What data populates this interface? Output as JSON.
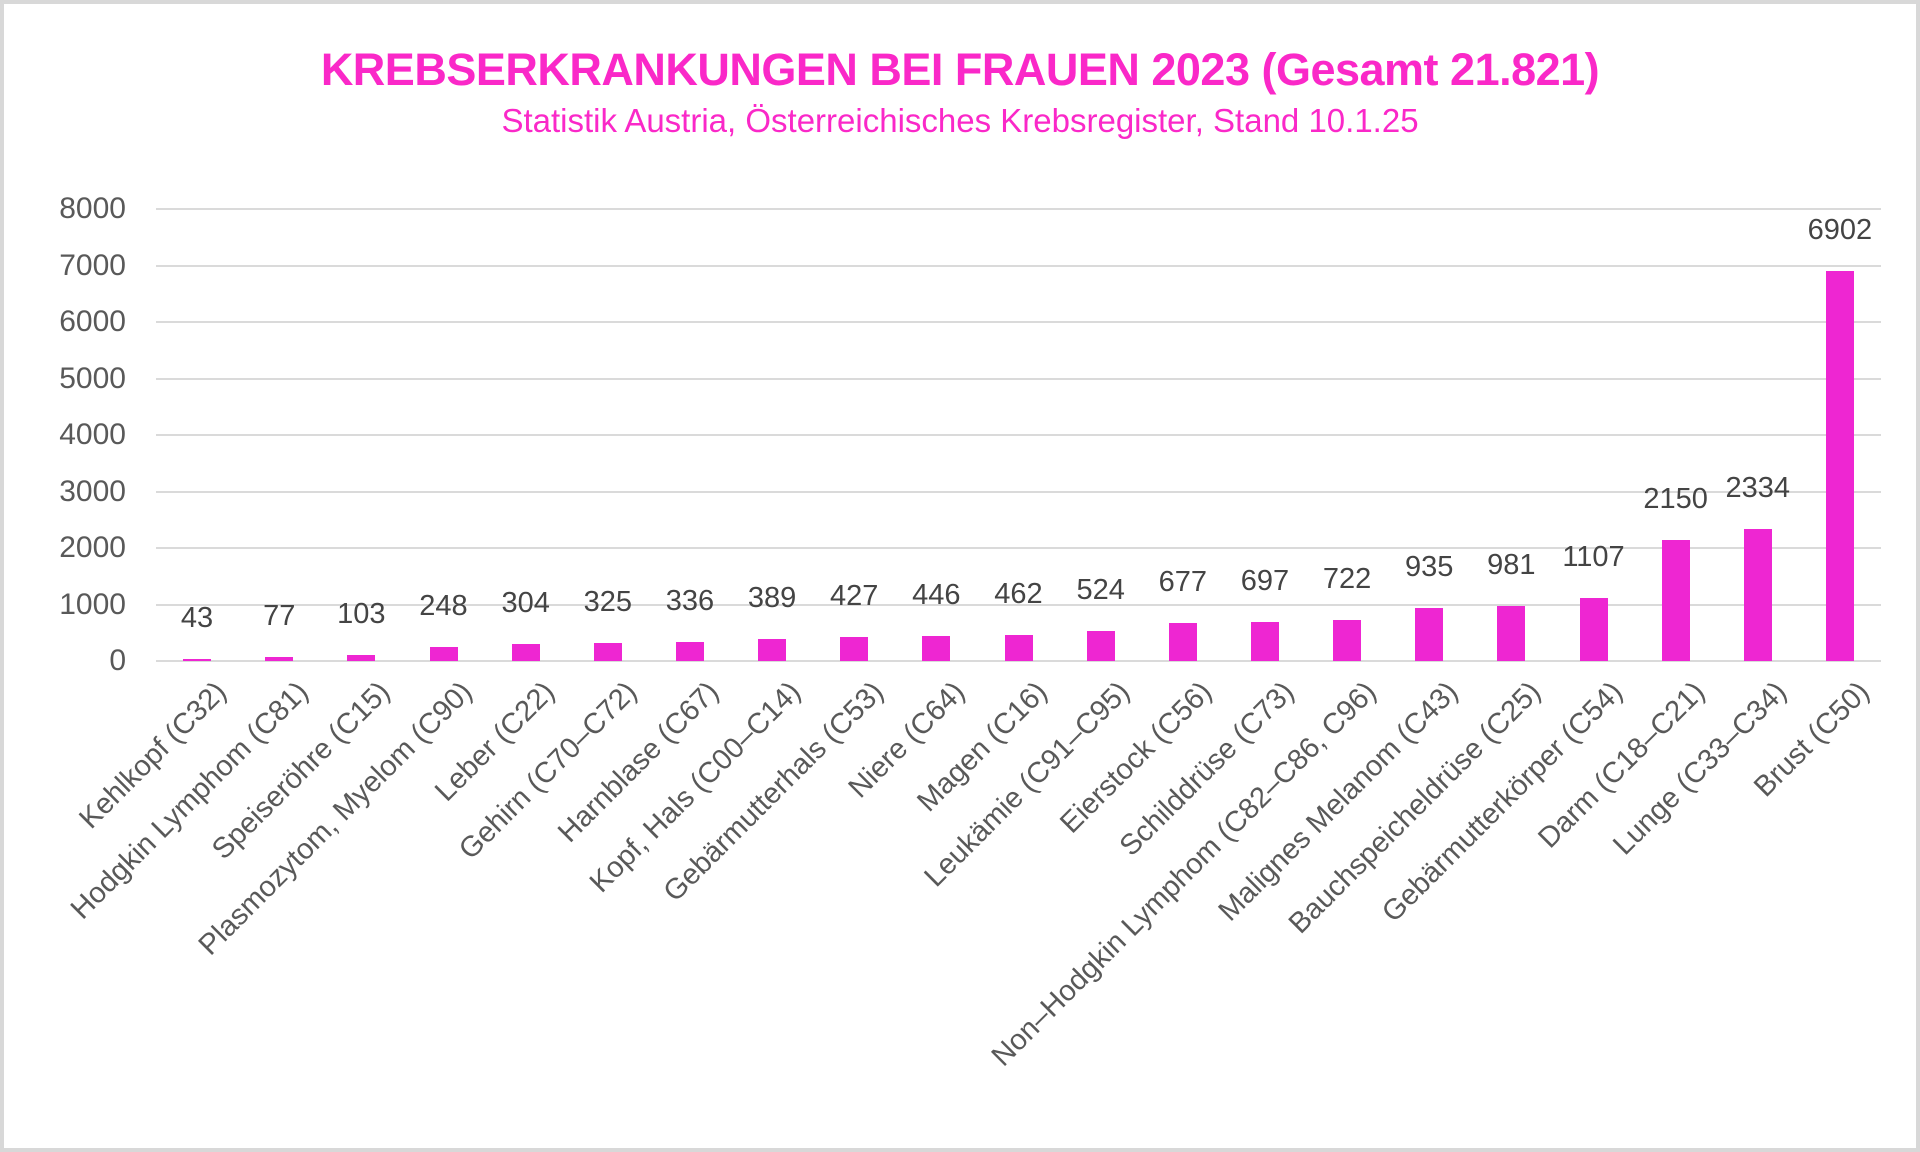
{
  "chart": {
    "title": "KREBSERKRANKUNGEN BEI FRAUEN 2023 (Gesamt 21.821)",
    "subtitle": "Statistik Austria, Österreichisches Krebsregister, Stand 10.1.25",
    "title_color": "#FA28C8",
    "bar_color": "#EE26D2",
    "axis_text_color": "#595959",
    "data_label_color": "#444444",
    "gridline_color": "#DADADA",
    "frame_border_color": "#D8D8D8"
  },
  "chart_data": {
    "type": "bar",
    "title": "KREBSERKRANKUNGEN BEI FRAUEN 2023 (Gesamt 21.821)",
    "subtitle": "Statistik Austria, Österreichisches Krebsregister, Stand 10.1.25",
    "categories": [
      "Kehlkopf (C32)",
      "Hodgkin Lymphom (C81)",
      "Speiseröhre (C15)",
      "Plasmozytom, Myelom (C90)",
      "Leber (C22)",
      "Gehirn (C70–C72)",
      "Harnblase (C67)",
      "Kopf, Hals (C00–C14)",
      "Gebärmutterhals (C53)",
      "Niere (C64)",
      "Magen (C16)",
      "Leukämie (C91–C95)",
      "Eierstock (C56)",
      "Schilddrüse (C73)",
      "Non–Hodgkin Lymphom (C82–C86, C96)",
      "Malignes Melanom (C43)",
      "Bauchspeicheldrüse (C25)",
      "Gebärmutterkörper (C54)",
      "Darm (C18–C21)",
      "Lunge (C33–C34)",
      "Brust (C50)"
    ],
    "values": [
      43,
      77,
      103,
      248,
      304,
      325,
      336,
      389,
      427,
      446,
      462,
      524,
      677,
      697,
      722,
      935,
      981,
      1107,
      2150,
      2334,
      6902
    ],
    "xlabel": "",
    "ylabel": "",
    "ylim": [
      0,
      8000
    ],
    "yticks": [
      0,
      1000,
      2000,
      3000,
      4000,
      5000,
      6000,
      7000,
      8000
    ],
    "grid": true,
    "legend": false,
    "data_labels": true
  }
}
